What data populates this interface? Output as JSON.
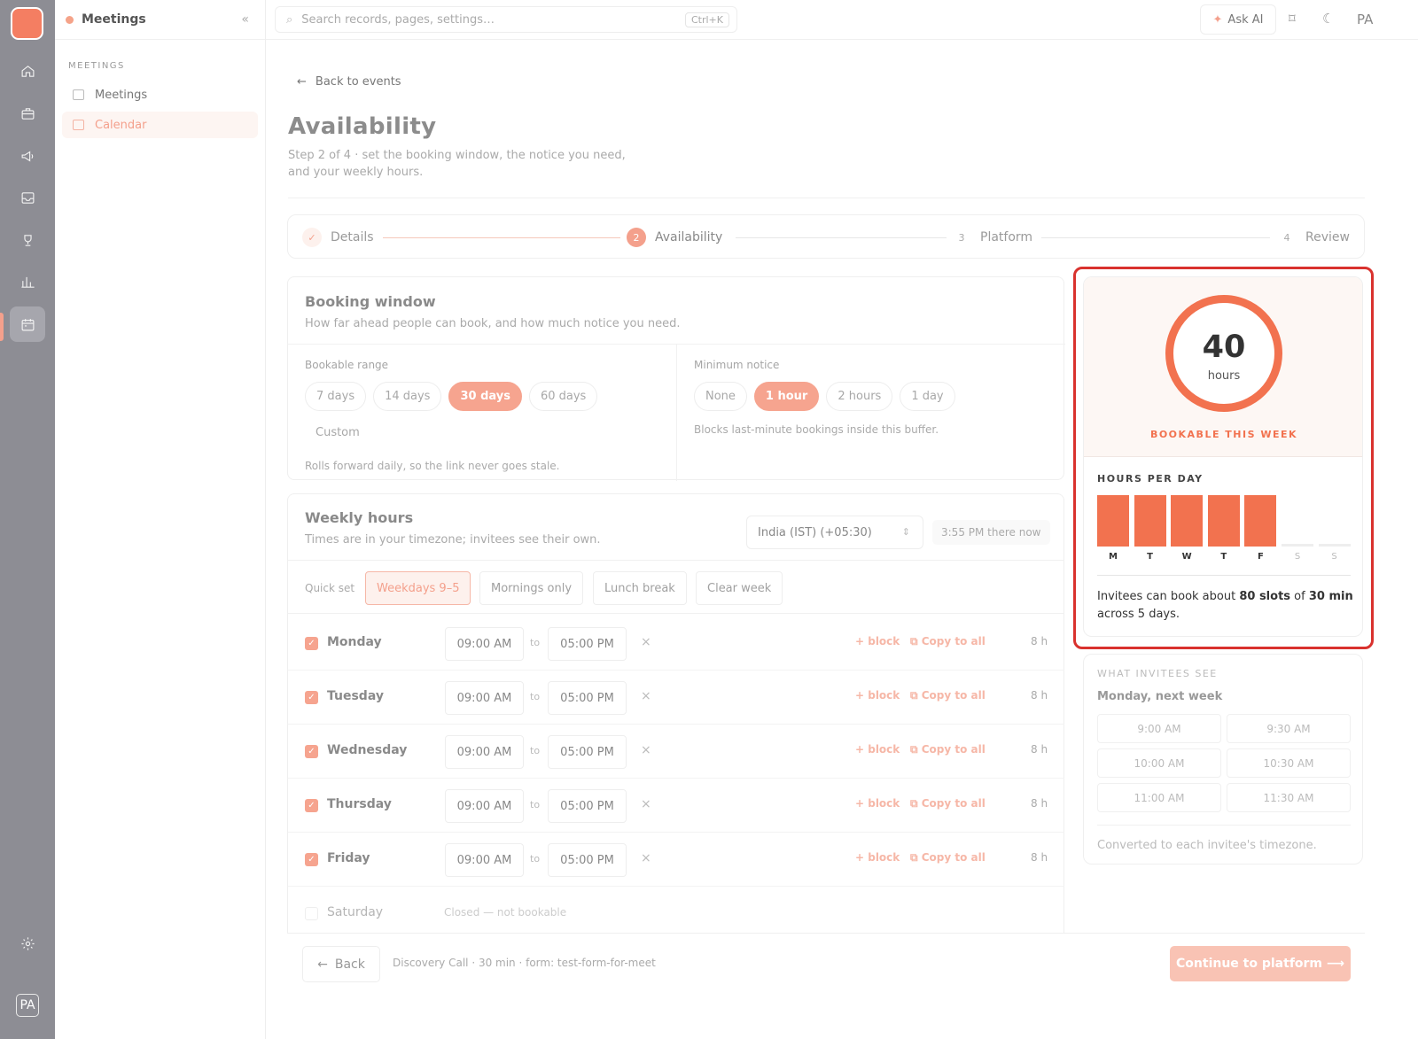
{
  "sidebar": {
    "app_title": "Meetings",
    "section": "MEETINGS",
    "items": [
      {
        "label": "Meetings",
        "icon": "list-icon"
      },
      {
        "label": "Calendar",
        "icon": "calendar-icon"
      }
    ],
    "rail_icons": [
      "home-icon",
      "briefcase-icon",
      "megaphone-icon",
      "inbox-icon",
      "trophy-icon",
      "chart-icon",
      "calendar-icon",
      "settings-icon"
    ],
    "user_initials": "PA"
  },
  "topbar": {
    "search_placeholder": "Search records, pages, settings…",
    "search_shortcut": "Ctrl+K",
    "ask_ai": "Ask AI",
    "user_initials": "PA"
  },
  "page": {
    "back_link": "Back to events",
    "title": "Availability",
    "subtitle": "Step 2 of 4 · set the booking window, the notice you need, and your weekly hours."
  },
  "steps": [
    {
      "num": "✓",
      "label": "Details",
      "state": "done"
    },
    {
      "num": "2",
      "label": "Availability",
      "state": "current"
    },
    {
      "num": "3",
      "label": "Platform",
      "state": "upcoming"
    },
    {
      "num": "4",
      "label": "Review",
      "state": "upcoming"
    }
  ],
  "booking": {
    "title": "Booking window",
    "subtitle": "How far ahead people can book, and how much notice you need.",
    "range_label": "Bookable range",
    "range_options": [
      "7 days",
      "14 days",
      "30 days",
      "60 days",
      "Custom"
    ],
    "range_selected": "30 days",
    "range_hint": "Rolls forward daily, so the link never goes stale.",
    "notice_label": "Minimum notice",
    "notice_options": [
      "None",
      "1 hour",
      "2 hours",
      "1 day"
    ],
    "notice_selected": "1 hour",
    "notice_hint": "Blocks last-minute bookings inside this buffer."
  },
  "weekly": {
    "title": "Weekly hours",
    "subtitle": "Times are in your timezone; invitees see their own.",
    "timezone": "India (IST) (+05:30)",
    "now": "3:55 PM there now",
    "quick_set_label": "Quick set",
    "quick_set": [
      "Weekdays 9–5",
      "Mornings only",
      "Lunch break",
      "Clear week"
    ],
    "quick_selected": "Weekdays 9–5",
    "to": "to",
    "block": "+ block",
    "copy": "Copy to all",
    "days": [
      {
        "day": "Monday",
        "on": true,
        "start": "09:00 AM",
        "end": "05:00 PM",
        "hours": "8 h"
      },
      {
        "day": "Tuesday",
        "on": true,
        "start": "09:00 AM",
        "end": "05:00 PM",
        "hours": "8 h"
      },
      {
        "day": "Wednesday",
        "on": true,
        "start": "09:00 AM",
        "end": "05:00 PM",
        "hours": "8 h"
      },
      {
        "day": "Thursday",
        "on": true,
        "start": "09:00 AM",
        "end": "05:00 PM",
        "hours": "8 h"
      },
      {
        "day": "Friday",
        "on": true,
        "start": "09:00 AM",
        "end": "05:00 PM",
        "hours": "8 h"
      },
      {
        "day": "Saturday",
        "on": false,
        "closed": "Closed — not bookable"
      }
    ]
  },
  "footer": {
    "back": "Back",
    "info": "Discovery Call · 30 min · form: test-form-for-meet",
    "continue": "Continue to platform ⟶"
  },
  "summary": {
    "total": "40",
    "unit": "hours",
    "caption": "BOOKABLE THIS WEEK",
    "hpd_title": "HOURS PER DAY",
    "desc_pre": "Invitees can book about ",
    "desc_slots": "80 slots",
    "desc_mid": " of ",
    "desc_len": "30 min",
    "desc_post": " across 5 days.",
    "accent": "#f2724f"
  },
  "chart_data": {
    "type": "bar",
    "title": "HOURS PER DAY",
    "categories": [
      "M",
      "T",
      "W",
      "T",
      "F",
      "S",
      "S"
    ],
    "values": [
      8,
      8,
      8,
      8,
      8,
      0,
      0
    ],
    "ylim": [
      0,
      8
    ]
  },
  "invitees": {
    "title": "WHAT INVITEES SEE",
    "day": "Monday, next week",
    "slots": [
      "9:00 AM",
      "9:30 AM",
      "10:00 AM",
      "10:30 AM",
      "11:00 AM",
      "11:30 AM"
    ],
    "note": "Converted to each invitee's timezone."
  }
}
